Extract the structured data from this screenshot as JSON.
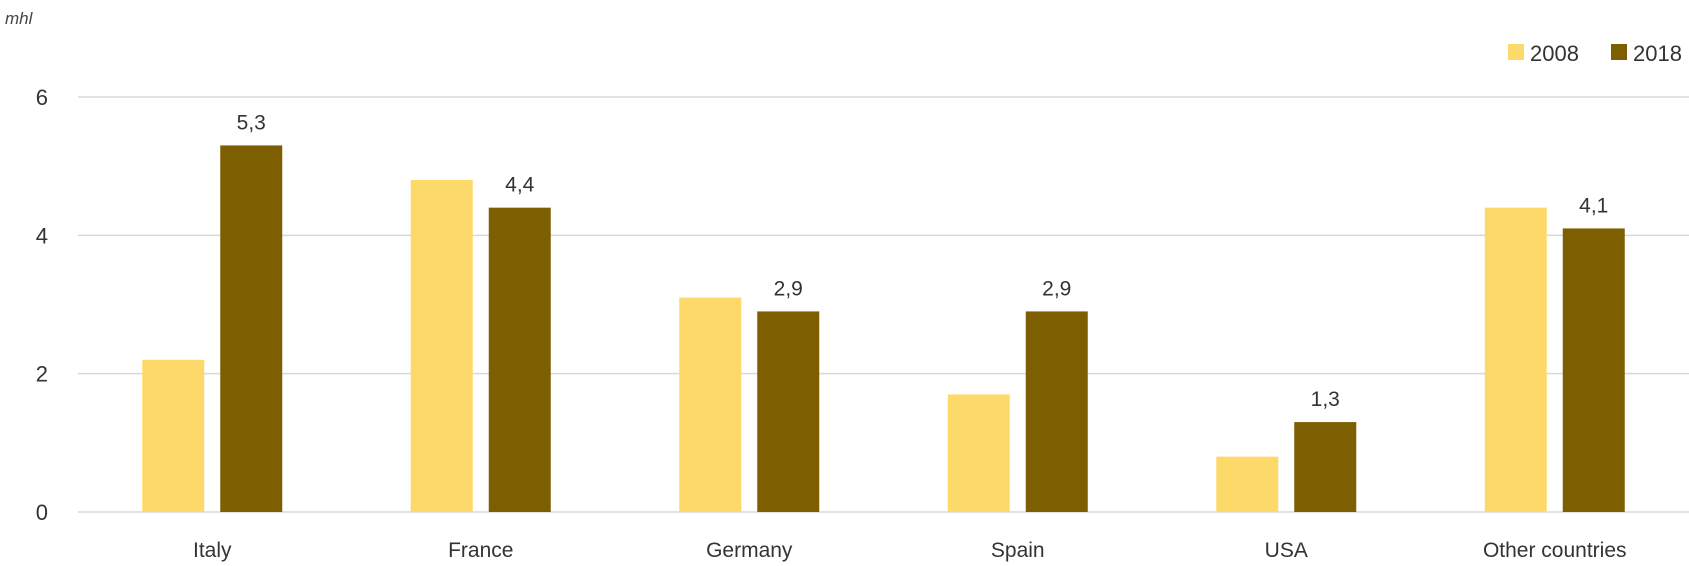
{
  "chart_data": {
    "type": "bar",
    "unit_label": "mhl",
    "categories": [
      "Italy",
      "France",
      "Germany",
      "Spain",
      "USA",
      "Other countries"
    ],
    "series": [
      {
        "name": "2008",
        "color": "#FDD96A",
        "values": [
          2.2,
          4.8,
          3.1,
          1.7,
          0.8,
          4.4
        ],
        "data_labels": []
      },
      {
        "name": "2018",
        "color": "#7D5E00",
        "values": [
          5.3,
          4.4,
          2.9,
          2.9,
          1.3,
          4.1
        ],
        "data_labels": [
          "5,3",
          "4,4",
          "2,9",
          "2,9",
          "1,3",
          "4,1"
        ]
      }
    ],
    "y_ticks": [
      "0",
      "2",
      "4",
      "6"
    ],
    "ylim": [
      0,
      6
    ],
    "grid": true,
    "legend_position": "top-right",
    "gridline_color": "#D9D9D9"
  }
}
